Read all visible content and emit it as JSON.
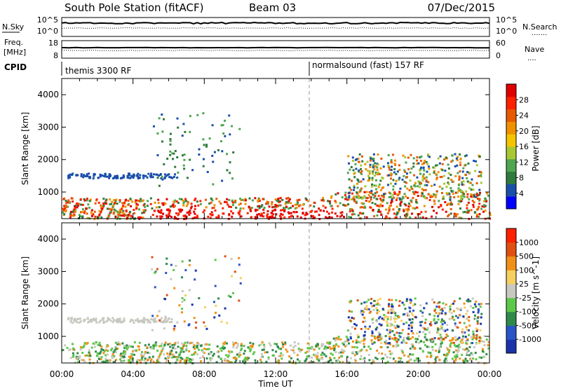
{
  "header": {
    "station": "South Pole Station (fitACF)",
    "beam": "Beam 03",
    "date": "07/Dec/2015"
  },
  "sky_panel": {
    "left_label": "N.Sky",
    "left_ticks": [
      "10^5",
      "10^0"
    ],
    "right_ticks": [
      "10^5",
      "10^0"
    ],
    "right_label": "N.Search",
    "right_legend_line": "......."
  },
  "freq_panel": {
    "left_label_top": "Freq.",
    "left_label_unit": "[MHz]",
    "left_ticks": [
      "18",
      "8"
    ],
    "right_ticks": [
      "60",
      "0"
    ],
    "right_label": "Nave",
    "right_legend_line": "...."
  },
  "cpid_panel": {
    "label": "CPID",
    "segments": [
      "themis 3300 RF",
      "normalsound (fast) 157 RF"
    ]
  },
  "x_axis": {
    "ticks": [
      "00:00",
      "04:00",
      "08:00",
      "12:00",
      "16:00",
      "20:00",
      "00:00"
    ],
    "label": "Time UT"
  },
  "chart_data": [
    {
      "type": "heatmap",
      "title": "Power",
      "ylabel": "Slant Range [km]",
      "y_ticks": [
        "1000",
        "2000",
        "3000",
        "4000"
      ],
      "ylim": [
        180,
        4500
      ],
      "xlim_hours": [
        0,
        24
      ],
      "colorbar": {
        "label": "Power [dB]",
        "ticks": [
          "4",
          "8",
          "12",
          "16",
          "20",
          "24",
          "28"
        ],
        "colors": [
          "#0000ff",
          "#1a4faa",
          "#2f7a3c",
          "#4fa64f",
          "#a8c832",
          "#f5c400",
          "#f09000",
          "#e85a00",
          "#ff2000",
          "#e00000"
        ]
      }
    },
    {
      "type": "heatmap",
      "title": "Velocity",
      "ylabel": "Slant Range [km]",
      "y_ticks": [
        "1000",
        "2000",
        "3000",
        "4000"
      ],
      "ylim": [
        180,
        4500
      ],
      "xlim_hours": [
        0,
        24
      ],
      "colorbar": {
        "label": "Velocity [m s^-1]",
        "ticks": [
          "1000",
          "500",
          "100",
          "25",
          "-25",
          "-100",
          "-500",
          "-1000"
        ],
        "colors": [
          "#1a33aa",
          "#2a55c8",
          "#2f8a4a",
          "#5cc84a",
          "#c8c8c0",
          "#f5d060",
          "#f09018",
          "#e05010",
          "#ff2000"
        ]
      }
    }
  ]
}
